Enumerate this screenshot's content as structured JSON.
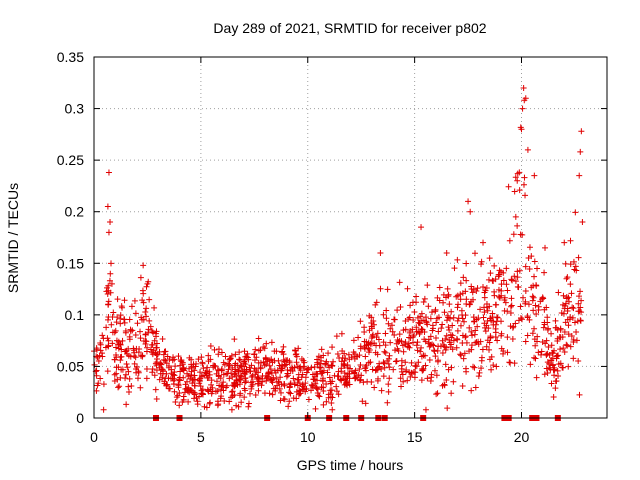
{
  "chart_data": {
    "type": "scatter",
    "title": "Day 289 of 2021, SRMTID for receiver p802",
    "xlabel": "GPS time / hours",
    "ylabel": "SRMTID / TECUs",
    "xlim": [
      0,
      24
    ],
    "ylim": [
      0,
      0.35
    ],
    "xticks": [
      0,
      5,
      10,
      15,
      20
    ],
    "yticks": [
      0,
      0.05,
      0.1,
      0.15,
      0.2,
      0.25,
      0.3,
      0.35
    ],
    "xtick_labels": [
      "0",
      "5",
      "10",
      "15",
      "20"
    ],
    "ytick_labels": [
      "0",
      "0.05",
      "0.1",
      "0.15",
      "0.2",
      "0.25",
      "0.3",
      "0.35"
    ],
    "grid": true,
    "marker": "+",
    "series_color": "#e00000",
    "trend": [
      [
        0.0,
        0.055
      ],
      [
        0.5,
        0.06
      ],
      [
        0.7,
        0.1
      ],
      [
        1.0,
        0.07
      ],
      [
        1.5,
        0.07
      ],
      [
        2.0,
        0.075
      ],
      [
        2.5,
        0.085
      ],
      [
        3.0,
        0.05
      ],
      [
        4.0,
        0.035
      ],
      [
        5.0,
        0.04
      ],
      [
        6.0,
        0.04
      ],
      [
        7.0,
        0.04
      ],
      [
        8.0,
        0.045
      ],
      [
        9.0,
        0.045
      ],
      [
        10.0,
        0.04
      ],
      [
        11.0,
        0.04
      ],
      [
        12.0,
        0.05
      ],
      [
        13.0,
        0.065
      ],
      [
        14.0,
        0.075
      ],
      [
        15.0,
        0.07
      ],
      [
        16.0,
        0.075
      ],
      [
        17.0,
        0.09
      ],
      [
        18.0,
        0.1
      ],
      [
        19.0,
        0.1
      ],
      [
        19.5,
        0.12
      ],
      [
        20.0,
        0.19
      ],
      [
        20.5,
        0.11
      ],
      [
        21.0,
        0.08
      ],
      [
        21.5,
        0.05
      ],
      [
        22.0,
        0.09
      ],
      [
        22.5,
        0.11
      ],
      [
        22.8,
        0.12
      ]
    ],
    "spikes": [
      [
        0.7,
        0.238
      ],
      [
        0.65,
        0.205
      ],
      [
        0.75,
        0.19
      ],
      [
        0.7,
        0.18
      ],
      [
        2.3,
        0.148
      ],
      [
        2.5,
        0.13
      ],
      [
        13.4,
        0.16
      ],
      [
        15.3,
        0.185
      ],
      [
        16.5,
        0.16
      ],
      [
        17.5,
        0.21
      ],
      [
        17.6,
        0.2
      ],
      [
        18.2,
        0.17
      ],
      [
        19.8,
        0.23
      ],
      [
        20.0,
        0.28
      ],
      [
        20.1,
        0.32
      ],
      [
        20.2,
        0.31
      ],
      [
        20.05,
        0.3
      ],
      [
        20.3,
        0.26
      ],
      [
        20.6,
        0.235
      ],
      [
        21.1,
        0.165
      ],
      [
        22.0,
        0.17
      ],
      [
        22.8,
        0.278
      ],
      [
        22.75,
        0.258
      ],
      [
        22.7,
        0.235
      ],
      [
        22.85,
        0.19
      ]
    ],
    "gap_markers": [
      2.9,
      4.0,
      8.1,
      10.0,
      11.0,
      11.8,
      12.5,
      13.3,
      13.6,
      15.4,
      19.2,
      19.4,
      20.5,
      20.7,
      21.7
    ]
  }
}
